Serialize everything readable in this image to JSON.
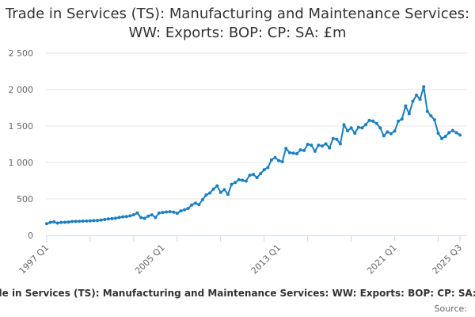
{
  "chart_data": {
    "type": "line",
    "title": "Trade in Services (TS): Manufacturing and Maintenance Services: WW: Exports: BOP: CP: SA: £m",
    "xlabel": "",
    "ylabel": "",
    "x_start_year": 1997,
    "x_start_quarter": 1,
    "frequency": "quarterly",
    "x_tick_labels": [
      "1997 Q1",
      "2005 Q1",
      "2013 Q1",
      "2021 Q1",
      "2025 Q3"
    ],
    "y_ticks": [
      0,
      500,
      1000,
      1500,
      2000,
      2500
    ],
    "y_tick_labels": [
      "0",
      "500",
      "1 000",
      "1 500",
      "2 000",
      "2 500"
    ],
    "ylim": [
      0,
      2500
    ],
    "grid": "horizontal",
    "legend": "bottom",
    "series": [
      {
        "name": "Trade in Services (TS): Manufacturing and Maintenance Services: WW: Exports: BOP: CP: SA: £m",
        "color": "#1a7fc1",
        "values": [
          160,
          178,
          185,
          168,
          178,
          180,
          182,
          190,
          192,
          193,
          196,
          197,
          200,
          202,
          205,
          210,
          217,
          225,
          230,
          235,
          246,
          254,
          258,
          268,
          282,
          307,
          245,
          234,
          263,
          281,
          245,
          307,
          314,
          321,
          325,
          318,
          303,
          336,
          350,
          369,
          416,
          442,
          423,
          489,
          555,
          580,
          635,
          679,
          588,
          628,
          562,
          700,
          726,
          763,
          755,
          745,
          825,
          836,
          792,
          847,
          901,
          931,
          1036,
          1066,
          1026,
          1011,
          1193,
          1135,
          1128,
          1120,
          1172,
          1164,
          1248,
          1237,
          1153,
          1237,
          1226,
          1255,
          1200,
          1328,
          1318,
          1255,
          1518,
          1434,
          1474,
          1401,
          1482,
          1474,
          1518,
          1577,
          1566,
          1536,
          1474,
          1365,
          1420,
          1394,
          1431,
          1566,
          1595,
          1774,
          1668,
          1839,
          1923,
          1865,
          2040,
          1701,
          1639,
          1584,
          1401,
          1328,
          1358,
          1409,
          1438,
          1409,
          1376
        ]
      }
    ],
    "source_label": "Source:"
  }
}
